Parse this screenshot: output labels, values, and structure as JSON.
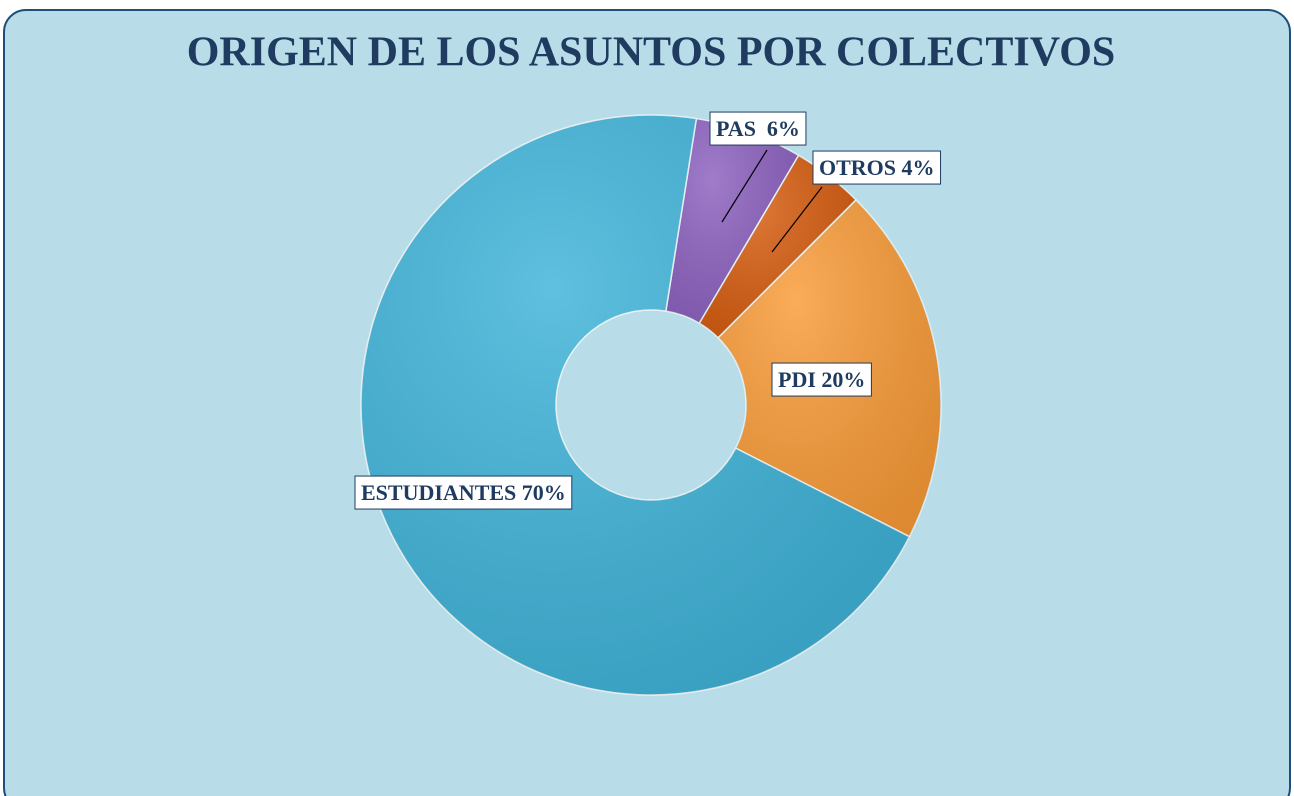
{
  "chart_data": {
    "type": "donut",
    "title": "ORIGEN DE LOS ASUNTOS POR COLECTIVOS",
    "categories": [
      "PAS",
      "OTROS",
      "PDI",
      "ESTUDIANTES"
    ],
    "values": [
      6,
      4,
      20,
      70
    ],
    "value_labels": [
      "PAS  6%",
      "OTROS 4%",
      "PDI 20%",
      "ESTUDIANTES 70%"
    ],
    "colors": [
      "#8b5fbf",
      "#d65a0c",
      "#f99a35",
      "#3cb2d8"
    ]
  }
}
